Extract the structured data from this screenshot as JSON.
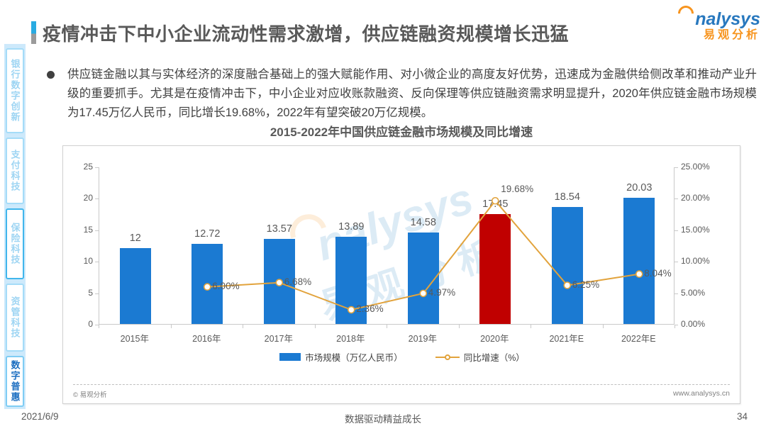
{
  "header": {
    "title": "疫情冲击下中小企业流动性需求激增，供应链融资规模增长迅猛",
    "logo_en": "nalysys",
    "logo_cn": "易观分析"
  },
  "sidebar": {
    "items": [
      {
        "label": "银行数字创新",
        "active": false
      },
      {
        "label": "支付科技",
        "active": false
      },
      {
        "label": "保险科技",
        "active": false
      },
      {
        "label": "资管科技",
        "active": false
      },
      {
        "label": "数字普惠",
        "active": true
      }
    ]
  },
  "summary": {
    "bullet_text": "供应链金融以其与实体经济的深度融合基础上的强大赋能作用、对小微企业的高度友好优势，迅速成为金融供给侧改革和推动产业升级的重要抓手。尤其是在疫情冲击下，中小企业对应收账款融资、反向保理等供应链融资需求明显提升，2020年供应链金融市场规模为17.45万亿人民币，同比增长19.68%，2022年有望突破20万亿规模。"
  },
  "chart_data": {
    "type": "bar+line",
    "title": "2015-2022年中国供应链金融市场规模及同比增速",
    "categories": [
      "2015年",
      "2016年",
      "2017年",
      "2018年",
      "2019年",
      "2020年",
      "2021年E",
      "2022年E"
    ],
    "series": [
      {
        "name": "市场规模（万亿人民币）",
        "type": "bar",
        "axis": "left",
        "color": "#1b7ad2",
        "highlight_index": 5,
        "highlight_color": "#c00000",
        "values": [
          12,
          12.72,
          13.57,
          13.89,
          14.58,
          17.45,
          18.54,
          20.03
        ],
        "display_values": [
          "12",
          "12.72",
          "13.57",
          "13.89",
          "14.58",
          "17.45",
          "18.54",
          "20.03"
        ]
      },
      {
        "name": "同比增速（%）",
        "type": "line",
        "axis": "right",
        "color": "#e2a33c",
        "values": [
          null,
          6.0,
          6.68,
          2.36,
          4.97,
          19.68,
          6.25,
          8.04
        ],
        "labels": [
          null,
          "6.00%",
          "6.68%",
          "2.36%",
          "4.97%",
          "19.68%",
          "6.25%",
          "8.04%"
        ]
      }
    ],
    "left_axis": {
      "min": 0,
      "max": 25,
      "ticks": [
        0,
        5,
        10,
        15,
        20,
        25
      ]
    },
    "right_axis": {
      "min": 0,
      "max": 25,
      "ticks": [
        "0.00%",
        "5.00%",
        "10.00%",
        "15.00%",
        "20.00%",
        "25.00%"
      ]
    },
    "legend_position": "bottom",
    "grid": false,
    "source_left": "© 易观分析",
    "source_right": "www.analysys.cn"
  },
  "watermark": {
    "en": "nalysys",
    "cn": "易观分析"
  },
  "footer": {
    "date": "2021/6/9",
    "center": "数据驱动精益成长",
    "page": "34"
  },
  "colors": {
    "bar_blue": "#1b7ad2",
    "bar_highlight_red": "#c00000",
    "line_orange": "#e2a33c",
    "accent_blue": "#29abe2",
    "logo_orange": "#f7941e",
    "logo_blue": "#2878be",
    "sidebar_bg": "#cde9fb"
  }
}
